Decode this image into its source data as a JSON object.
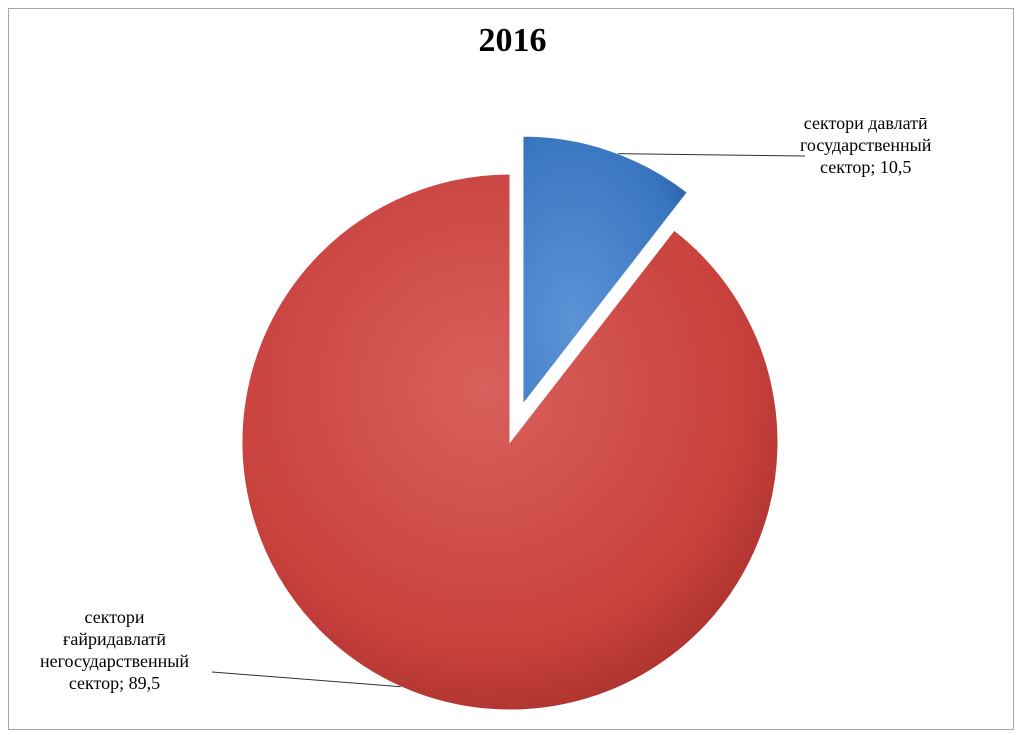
{
  "chart_data": {
    "type": "pie",
    "title": "2016",
    "slices": [
      {
        "label_lines": [
          "сектори давлатӣ",
          "государственный",
          "сектор; 10,5"
        ],
        "value": 10.5,
        "color": "#4f81bd",
        "exploded": true
      },
      {
        "label_lines": [
          "сектори",
          "ғайридавлатӣ",
          "негосударственный",
          "сектор; 89,5"
        ],
        "value": 89.5,
        "color": "#c0504d",
        "exploded": false
      }
    ],
    "legend": "none"
  }
}
